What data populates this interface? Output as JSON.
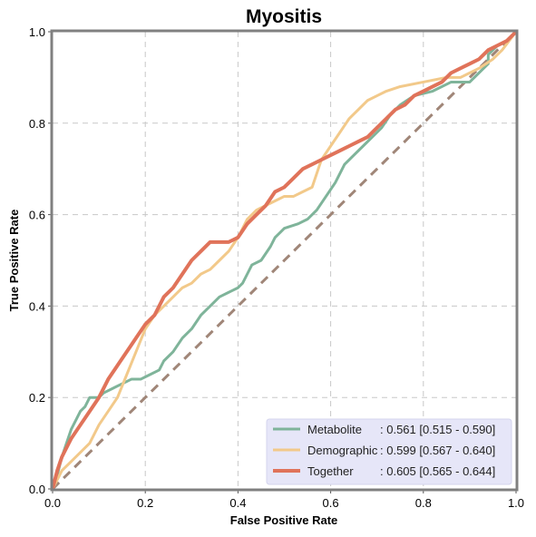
{
  "chart_data": {
    "type": "line",
    "title": "Myositis",
    "xlabel": "False Positive Rate",
    "ylabel": "True Positive Rate",
    "xlim": [
      0,
      1
    ],
    "ylim": [
      0,
      1
    ],
    "x_ticks": [
      "0.0",
      "0.2",
      "0.4",
      "0.6",
      "0.8",
      "1.0"
    ],
    "y_ticks": [
      "0.0",
      "0.2",
      "0.4",
      "0.6",
      "0.8",
      "1.0"
    ],
    "grid": true,
    "legend_position": "lower-right",
    "series": [
      {
        "name": "Metabolite",
        "auc_label": ": 0.561 [0.515 - 0.590]",
        "color": "#7fb49a",
        "points": [
          [
            0,
            0
          ],
          [
            0.01,
            0.03
          ],
          [
            0.02,
            0.07
          ],
          [
            0.03,
            0.1
          ],
          [
            0.04,
            0.13
          ],
          [
            0.05,
            0.15
          ],
          [
            0.06,
            0.17
          ],
          [
            0.07,
            0.18
          ],
          [
            0.08,
            0.2
          ],
          [
            0.1,
            0.2
          ],
          [
            0.11,
            0.21
          ],
          [
            0.13,
            0.22
          ],
          [
            0.15,
            0.23
          ],
          [
            0.17,
            0.24
          ],
          [
            0.19,
            0.24
          ],
          [
            0.21,
            0.25
          ],
          [
            0.23,
            0.26
          ],
          [
            0.24,
            0.28
          ],
          [
            0.26,
            0.3
          ],
          [
            0.28,
            0.33
          ],
          [
            0.3,
            0.35
          ],
          [
            0.32,
            0.38
          ],
          [
            0.34,
            0.4
          ],
          [
            0.36,
            0.42
          ],
          [
            0.38,
            0.43
          ],
          [
            0.4,
            0.44
          ],
          [
            0.41,
            0.45
          ],
          [
            0.42,
            0.47
          ],
          [
            0.43,
            0.49
          ],
          [
            0.45,
            0.5
          ],
          [
            0.47,
            0.53
          ],
          [
            0.48,
            0.55
          ],
          [
            0.5,
            0.57
          ],
          [
            0.53,
            0.58
          ],
          [
            0.55,
            0.59
          ],
          [
            0.57,
            0.61
          ],
          [
            0.59,
            0.64
          ],
          [
            0.61,
            0.67
          ],
          [
            0.63,
            0.71
          ],
          [
            0.65,
            0.73
          ],
          [
            0.67,
            0.75
          ],
          [
            0.69,
            0.77
          ],
          [
            0.71,
            0.79
          ],
          [
            0.73,
            0.82
          ],
          [
            0.75,
            0.84
          ],
          [
            0.78,
            0.86
          ],
          [
            0.82,
            0.87
          ],
          [
            0.86,
            0.89
          ],
          [
            0.9,
            0.89
          ],
          [
            0.93,
            0.92
          ],
          [
            0.94,
            0.93
          ],
          [
            0.94,
            0.95
          ],
          [
            0.96,
            0.97
          ],
          [
            0.98,
            0.98
          ],
          [
            1.0,
            1.0
          ]
        ]
      },
      {
        "name": "Demographic",
        "auc_label": ": 0.599 [0.567 - 0.640]",
        "color": "#f2c98a",
        "points": [
          [
            0,
            0
          ],
          [
            0.01,
            0.02
          ],
          [
            0.02,
            0.04
          ],
          [
            0.04,
            0.06
          ],
          [
            0.06,
            0.08
          ],
          [
            0.08,
            0.1
          ],
          [
            0.1,
            0.14
          ],
          [
            0.12,
            0.17
          ],
          [
            0.14,
            0.2
          ],
          [
            0.16,
            0.25
          ],
          [
            0.18,
            0.3
          ],
          [
            0.2,
            0.35
          ],
          [
            0.22,
            0.38
          ],
          [
            0.24,
            0.4
          ],
          [
            0.26,
            0.42
          ],
          [
            0.28,
            0.44
          ],
          [
            0.3,
            0.45
          ],
          [
            0.32,
            0.47
          ],
          [
            0.34,
            0.48
          ],
          [
            0.36,
            0.5
          ],
          [
            0.38,
            0.52
          ],
          [
            0.4,
            0.55
          ],
          [
            0.42,
            0.59
          ],
          [
            0.44,
            0.61
          ],
          [
            0.46,
            0.62
          ],
          [
            0.48,
            0.63
          ],
          [
            0.5,
            0.64
          ],
          [
            0.52,
            0.64
          ],
          [
            0.54,
            0.65
          ],
          [
            0.56,
            0.66
          ],
          [
            0.57,
            0.69
          ],
          [
            0.58,
            0.72
          ],
          [
            0.6,
            0.75
          ],
          [
            0.62,
            0.78
          ],
          [
            0.64,
            0.81
          ],
          [
            0.66,
            0.83
          ],
          [
            0.68,
            0.85
          ],
          [
            0.7,
            0.86
          ],
          [
            0.72,
            0.87
          ],
          [
            0.75,
            0.88
          ],
          [
            0.8,
            0.89
          ],
          [
            0.85,
            0.9
          ],
          [
            0.88,
            0.9
          ],
          [
            0.9,
            0.91
          ],
          [
            0.92,
            0.92
          ],
          [
            0.95,
            0.94
          ],
          [
            0.97,
            0.96
          ],
          [
            1.0,
            1.0
          ]
        ]
      },
      {
        "name": "Together",
        "auc_label": ": 0.605 [0.565 - 0.644]",
        "color": "#e0735a",
        "points": [
          [
            0,
            0
          ],
          [
            0.01,
            0.04
          ],
          [
            0.02,
            0.07
          ],
          [
            0.03,
            0.09
          ],
          [
            0.04,
            0.11
          ],
          [
            0.06,
            0.14
          ],
          [
            0.08,
            0.17
          ],
          [
            0.1,
            0.2
          ],
          [
            0.12,
            0.24
          ],
          [
            0.14,
            0.27
          ],
          [
            0.16,
            0.3
          ],
          [
            0.18,
            0.33
          ],
          [
            0.2,
            0.36
          ],
          [
            0.22,
            0.38
          ],
          [
            0.24,
            0.42
          ],
          [
            0.26,
            0.44
          ],
          [
            0.28,
            0.47
          ],
          [
            0.3,
            0.5
          ],
          [
            0.32,
            0.52
          ],
          [
            0.34,
            0.54
          ],
          [
            0.36,
            0.54
          ],
          [
            0.38,
            0.54
          ],
          [
            0.4,
            0.55
          ],
          [
            0.42,
            0.58
          ],
          [
            0.44,
            0.6
          ],
          [
            0.46,
            0.62
          ],
          [
            0.48,
            0.65
          ],
          [
            0.5,
            0.66
          ],
          [
            0.52,
            0.68
          ],
          [
            0.54,
            0.7
          ],
          [
            0.56,
            0.71
          ],
          [
            0.58,
            0.72
          ],
          [
            0.6,
            0.73
          ],
          [
            0.62,
            0.74
          ],
          [
            0.64,
            0.75
          ],
          [
            0.66,
            0.76
          ],
          [
            0.68,
            0.77
          ],
          [
            0.7,
            0.79
          ],
          [
            0.72,
            0.81
          ],
          [
            0.74,
            0.83
          ],
          [
            0.76,
            0.84
          ],
          [
            0.78,
            0.86
          ],
          [
            0.8,
            0.87
          ],
          [
            0.82,
            0.88
          ],
          [
            0.84,
            0.89
          ],
          [
            0.86,
            0.91
          ],
          [
            0.88,
            0.92
          ],
          [
            0.9,
            0.93
          ],
          [
            0.92,
            0.94
          ],
          [
            0.94,
            0.96
          ],
          [
            0.96,
            0.97
          ],
          [
            0.98,
            0.98
          ],
          [
            1.0,
            1.0
          ]
        ]
      }
    ],
    "reference_line": {
      "color": "#a08678",
      "points": [
        [
          0,
          0
        ],
        [
          1,
          1
        ]
      ]
    }
  }
}
